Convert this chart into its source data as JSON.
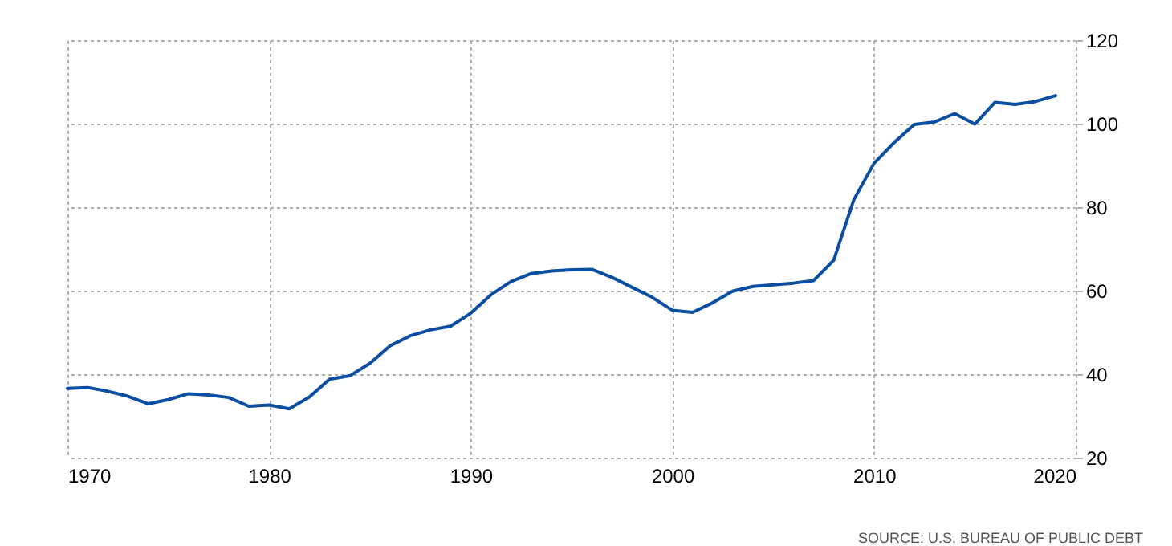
{
  "chart_data": {
    "type": "line",
    "x": [
      1970,
      1971,
      1972,
      1973,
      1974,
      1975,
      1976,
      1977,
      1978,
      1979,
      1980,
      1981,
      1982,
      1983,
      1984,
      1985,
      1986,
      1987,
      1988,
      1989,
      1990,
      1991,
      1992,
      1993,
      1994,
      1995,
      1996,
      1997,
      1998,
      1999,
      2000,
      2001,
      2002,
      2003,
      2004,
      2005,
      2006,
      2007,
      2008,
      2009,
      2010,
      2011,
      2012,
      2013,
      2014,
      2015,
      2016,
      2017,
      2018,
      2019
    ],
    "series": [
      {
        "color": "#0b4ea2",
        "values": [
          36.6,
          36.8,
          35.9,
          34.7,
          32.9,
          33.9,
          35.3,
          35.0,
          34.4,
          32.3,
          32.6,
          31.7,
          34.5,
          38.8,
          39.6,
          42.6,
          46.8,
          49.2,
          50.6,
          51.5,
          54.6,
          59.0,
          62.2,
          64.1,
          64.7,
          65.0,
          65.1,
          63.2,
          60.8,
          58.4,
          55.3,
          54.8,
          57.1,
          59.9,
          61.0,
          61.4,
          61.8,
          62.4,
          67.3,
          81.8,
          90.5,
          95.5,
          99.8,
          100.4,
          102.4,
          99.9,
          105.1,
          104.6,
          105.3,
          106.7
        ]
      }
    ],
    "xlim": [
      1970,
      2020
    ],
    "xticks": [
      1970,
      1980,
      1990,
      2000,
      2010,
      2020
    ],
    "ylim": [
      20,
      120
    ],
    "yticks": [
      20,
      40,
      60,
      80,
      100,
      120
    ],
    "grid": true,
    "line_style": "solid",
    "annotations": [
      "SOURCE: U.S. BUREAU OF PUBLIC DEBT"
    ]
  }
}
